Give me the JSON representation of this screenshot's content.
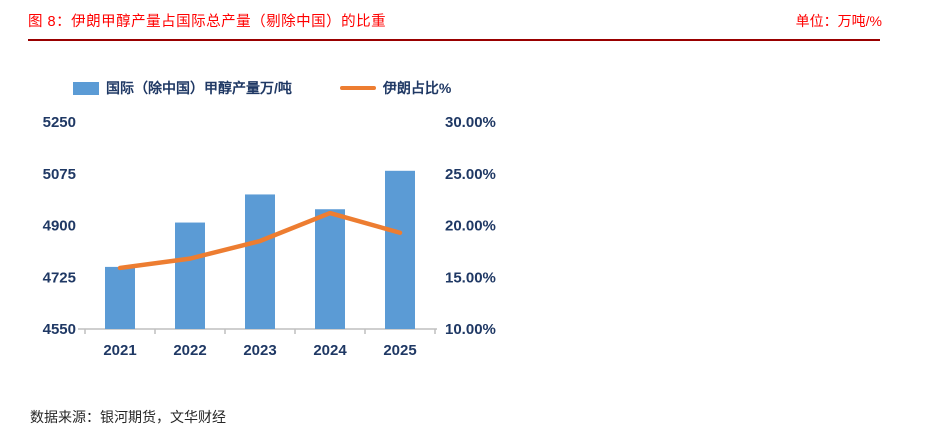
{
  "header": {
    "title": "图 8：伊朗甲醇产量占国际总产量（剔除中国）的比重",
    "unit_label": "单位：万吨/%"
  },
  "legend": {
    "bar_label": "国际（除中国）甲醇产量万/吨",
    "line_label": "伊朗占比%"
  },
  "chart_data": {
    "type": "bar",
    "subtype": "bar-line-combo",
    "categories": [
      "2021",
      "2022",
      "2023",
      "2024",
      "2025"
    ],
    "series": [
      {
        "name": "国际（除中国）甲醇产量万/吨",
        "type": "bar",
        "axis": "left",
        "color": "#5B9BD5",
        "values": [
          4760,
          4910,
          5005,
          4955,
          5085
        ]
      },
      {
        "name": "伊朗占比%",
        "type": "line",
        "axis": "right",
        "color": "#ED7D31",
        "values": [
          15.9,
          16.8,
          18.5,
          21.2,
          19.3
        ]
      }
    ],
    "left_axis": {
      "min": 4550,
      "max": 5250,
      "tick_values": [
        4550,
        4725,
        4900,
        5075,
        5250
      ],
      "tick_labels": [
        "4550",
        "4725",
        "4900",
        "5075",
        "5250"
      ]
    },
    "right_axis": {
      "min": 10,
      "max": 30,
      "tick_values": [
        10,
        15,
        20,
        25,
        30
      ],
      "tick_labels": [
        "10.00%",
        "15.00%",
        "20.00%",
        "25.00%",
        "30.00%"
      ]
    },
    "grid": false,
    "legend_position": "top-left"
  },
  "footer": {
    "source": "数据来源：银河期货，文华财经"
  },
  "colors": {
    "title": "#FF0000",
    "rule": "#990000",
    "axis_text": "#1F3864",
    "axis_line": "#BFBFBF",
    "bar": "#5B9BD5",
    "line": "#ED7D31"
  }
}
